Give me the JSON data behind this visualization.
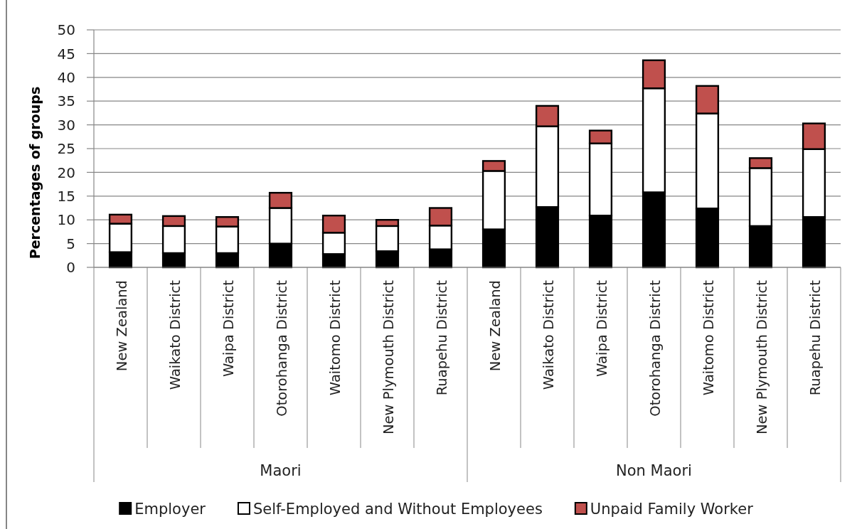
{
  "chart_data": {
    "type": "bar",
    "ylabel": "Percentages of groups",
    "categories": [
      "New Zealand",
      "Waikato District",
      "Waipa District",
      "Otorohanga District",
      "Waitomo District",
      "New Plymouth District",
      "Ruapehu District",
      "New Zealand",
      "Waikato District",
      "Waipa District",
      "Otorohanga District",
      "Waitomo District",
      "New Plymouth District",
      "Ruapehu District"
    ],
    "annotations": [
      "Maori",
      "Non Maori"
    ],
    "series": [
      {
        "name": "Employer",
        "color": "#000000",
        "values": [
          3.2,
          3.0,
          3.0,
          5.0,
          2.8,
          3.4,
          3.8,
          8.0,
          12.7,
          10.9,
          15.8,
          12.4,
          8.7,
          10.6
        ]
      },
      {
        "name": "Self-Employed and Without Employees",
        "color": "#ffffff",
        "values": [
          6.0,
          5.7,
          5.6,
          7.5,
          4.5,
          5.3,
          5.0,
          12.3,
          17.0,
          15.2,
          21.9,
          20.0,
          12.2,
          14.3
        ]
      },
      {
        "name": "Unpaid Family Worker",
        "color": "#c0504d",
        "values": [
          1.9,
          2.1,
          2.0,
          3.2,
          3.6,
          1.3,
          3.7,
          2.1,
          4.3,
          2.7,
          5.9,
          5.8,
          2.1,
          5.4
        ]
      }
    ],
    "stacked": true,
    "ylim": [
      0,
      50
    ],
    "yticks": [
      0,
      5,
      10,
      15,
      20,
      25,
      30,
      35,
      40,
      45,
      50
    ],
    "grid": "y",
    "legend": "bottom"
  }
}
